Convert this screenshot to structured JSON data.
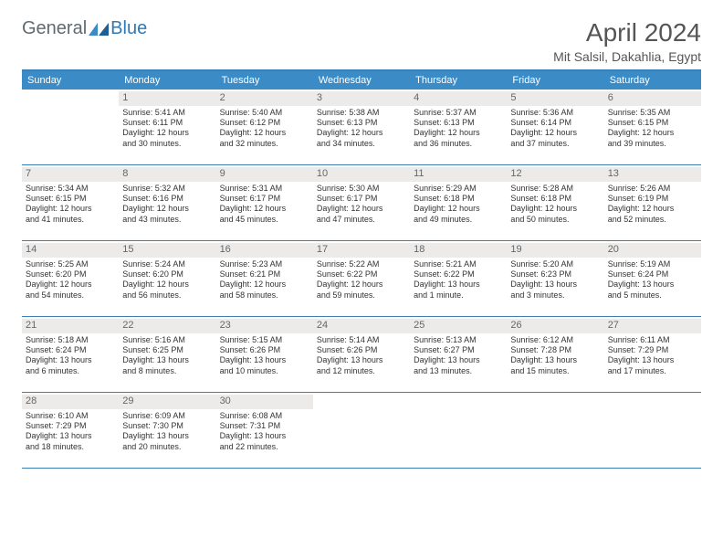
{
  "brand": {
    "text1": "General",
    "text2": "Blue"
  },
  "title": "April 2024",
  "location": "Mit Salsil, Dakahlia, Egypt",
  "colors": {
    "header_bg": "#3b8bc7",
    "rule": "#3b7fb6",
    "daynum_bg": "#ecebea",
    "logo_gray": "#5f6a72",
    "logo_blue": "#2e79b6"
  },
  "day_headers": [
    "Sunday",
    "Monday",
    "Tuesday",
    "Wednesday",
    "Thursday",
    "Friday",
    "Saturday"
  ],
  "weeks": [
    [
      {
        "day": null
      },
      {
        "day": 1,
        "sunrise": "Sunrise: 5:41 AM",
        "sunset": "Sunset: 6:11 PM",
        "dl1": "Daylight: 12 hours",
        "dl2": "and 30 minutes."
      },
      {
        "day": 2,
        "sunrise": "Sunrise: 5:40 AM",
        "sunset": "Sunset: 6:12 PM",
        "dl1": "Daylight: 12 hours",
        "dl2": "and 32 minutes."
      },
      {
        "day": 3,
        "sunrise": "Sunrise: 5:38 AM",
        "sunset": "Sunset: 6:13 PM",
        "dl1": "Daylight: 12 hours",
        "dl2": "and 34 minutes."
      },
      {
        "day": 4,
        "sunrise": "Sunrise: 5:37 AM",
        "sunset": "Sunset: 6:13 PM",
        "dl1": "Daylight: 12 hours",
        "dl2": "and 36 minutes."
      },
      {
        "day": 5,
        "sunrise": "Sunrise: 5:36 AM",
        "sunset": "Sunset: 6:14 PM",
        "dl1": "Daylight: 12 hours",
        "dl2": "and 37 minutes."
      },
      {
        "day": 6,
        "sunrise": "Sunrise: 5:35 AM",
        "sunset": "Sunset: 6:15 PM",
        "dl1": "Daylight: 12 hours",
        "dl2": "and 39 minutes."
      }
    ],
    [
      {
        "day": 7,
        "sunrise": "Sunrise: 5:34 AM",
        "sunset": "Sunset: 6:15 PM",
        "dl1": "Daylight: 12 hours",
        "dl2": "and 41 minutes."
      },
      {
        "day": 8,
        "sunrise": "Sunrise: 5:32 AM",
        "sunset": "Sunset: 6:16 PM",
        "dl1": "Daylight: 12 hours",
        "dl2": "and 43 minutes."
      },
      {
        "day": 9,
        "sunrise": "Sunrise: 5:31 AM",
        "sunset": "Sunset: 6:17 PM",
        "dl1": "Daylight: 12 hours",
        "dl2": "and 45 minutes."
      },
      {
        "day": 10,
        "sunrise": "Sunrise: 5:30 AM",
        "sunset": "Sunset: 6:17 PM",
        "dl1": "Daylight: 12 hours",
        "dl2": "and 47 minutes."
      },
      {
        "day": 11,
        "sunrise": "Sunrise: 5:29 AM",
        "sunset": "Sunset: 6:18 PM",
        "dl1": "Daylight: 12 hours",
        "dl2": "and 49 minutes."
      },
      {
        "day": 12,
        "sunrise": "Sunrise: 5:28 AM",
        "sunset": "Sunset: 6:18 PM",
        "dl1": "Daylight: 12 hours",
        "dl2": "and 50 minutes."
      },
      {
        "day": 13,
        "sunrise": "Sunrise: 5:26 AM",
        "sunset": "Sunset: 6:19 PM",
        "dl1": "Daylight: 12 hours",
        "dl2": "and 52 minutes."
      }
    ],
    [
      {
        "day": 14,
        "sunrise": "Sunrise: 5:25 AM",
        "sunset": "Sunset: 6:20 PM",
        "dl1": "Daylight: 12 hours",
        "dl2": "and 54 minutes."
      },
      {
        "day": 15,
        "sunrise": "Sunrise: 5:24 AM",
        "sunset": "Sunset: 6:20 PM",
        "dl1": "Daylight: 12 hours",
        "dl2": "and 56 minutes."
      },
      {
        "day": 16,
        "sunrise": "Sunrise: 5:23 AM",
        "sunset": "Sunset: 6:21 PM",
        "dl1": "Daylight: 12 hours",
        "dl2": "and 58 minutes."
      },
      {
        "day": 17,
        "sunrise": "Sunrise: 5:22 AM",
        "sunset": "Sunset: 6:22 PM",
        "dl1": "Daylight: 12 hours",
        "dl2": "and 59 minutes."
      },
      {
        "day": 18,
        "sunrise": "Sunrise: 5:21 AM",
        "sunset": "Sunset: 6:22 PM",
        "dl1": "Daylight: 13 hours",
        "dl2": "and 1 minute."
      },
      {
        "day": 19,
        "sunrise": "Sunrise: 5:20 AM",
        "sunset": "Sunset: 6:23 PM",
        "dl1": "Daylight: 13 hours",
        "dl2": "and 3 minutes."
      },
      {
        "day": 20,
        "sunrise": "Sunrise: 5:19 AM",
        "sunset": "Sunset: 6:24 PM",
        "dl1": "Daylight: 13 hours",
        "dl2": "and 5 minutes."
      }
    ],
    [
      {
        "day": 21,
        "sunrise": "Sunrise: 5:18 AM",
        "sunset": "Sunset: 6:24 PM",
        "dl1": "Daylight: 13 hours",
        "dl2": "and 6 minutes."
      },
      {
        "day": 22,
        "sunrise": "Sunrise: 5:16 AM",
        "sunset": "Sunset: 6:25 PM",
        "dl1": "Daylight: 13 hours",
        "dl2": "and 8 minutes."
      },
      {
        "day": 23,
        "sunrise": "Sunrise: 5:15 AM",
        "sunset": "Sunset: 6:26 PM",
        "dl1": "Daylight: 13 hours",
        "dl2": "and 10 minutes."
      },
      {
        "day": 24,
        "sunrise": "Sunrise: 5:14 AM",
        "sunset": "Sunset: 6:26 PM",
        "dl1": "Daylight: 13 hours",
        "dl2": "and 12 minutes."
      },
      {
        "day": 25,
        "sunrise": "Sunrise: 5:13 AM",
        "sunset": "Sunset: 6:27 PM",
        "dl1": "Daylight: 13 hours",
        "dl2": "and 13 minutes."
      },
      {
        "day": 26,
        "sunrise": "Sunrise: 6:12 AM",
        "sunset": "Sunset: 7:28 PM",
        "dl1": "Daylight: 13 hours",
        "dl2": "and 15 minutes."
      },
      {
        "day": 27,
        "sunrise": "Sunrise: 6:11 AM",
        "sunset": "Sunset: 7:29 PM",
        "dl1": "Daylight: 13 hours",
        "dl2": "and 17 minutes."
      }
    ],
    [
      {
        "day": 28,
        "sunrise": "Sunrise: 6:10 AM",
        "sunset": "Sunset: 7:29 PM",
        "dl1": "Daylight: 13 hours",
        "dl2": "and 18 minutes."
      },
      {
        "day": 29,
        "sunrise": "Sunrise: 6:09 AM",
        "sunset": "Sunset: 7:30 PM",
        "dl1": "Daylight: 13 hours",
        "dl2": "and 20 minutes."
      },
      {
        "day": 30,
        "sunrise": "Sunrise: 6:08 AM",
        "sunset": "Sunset: 7:31 PM",
        "dl1": "Daylight: 13 hours",
        "dl2": "and 22 minutes."
      },
      {
        "day": null
      },
      {
        "day": null
      },
      {
        "day": null
      },
      {
        "day": null
      }
    ]
  ]
}
